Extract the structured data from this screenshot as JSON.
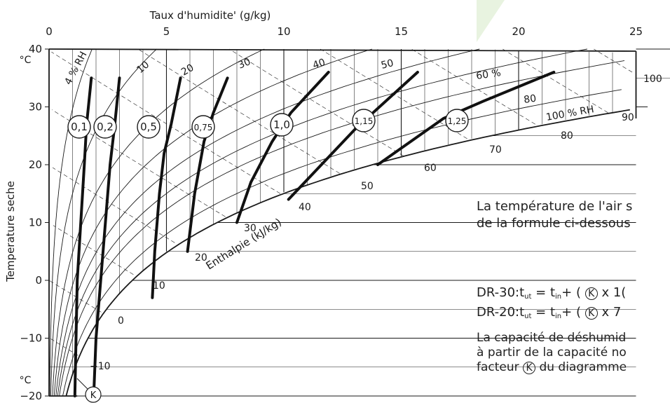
{
  "chart_data": {
    "type": "psychrometric",
    "xlabel": "Taux d'humidite' (g/kg)",
    "ylabel": "Temperature seche",
    "xlim": [
      0,
      25
    ],
    "ylim": [
      -20,
      40
    ],
    "x_ticks": [
      "0",
      "5",
      "10",
      "15",
      "20",
      "25"
    ],
    "y_ticks": [
      "40",
      "30",
      "20",
      "10",
      "0",
      "-10",
      "-20"
    ],
    "y_unit": "°C",
    "rh_labels": [
      "4 % RH",
      "10",
      "20",
      "30",
      "40",
      "50",
      "60 %",
      "80",
      "100 % RH"
    ],
    "enthalpy_label": "Enthalpie (kJ/kg)",
    "enthalpy_labels": [
      "-10",
      "0",
      "10",
      "20",
      "30",
      "40",
      "50",
      "60",
      "70",
      "80",
      "90",
      "100"
    ],
    "k_factors": [
      "0,1",
      "0,2",
      "0,5",
      "0,75",
      "1,0",
      "1,15",
      "1,25"
    ],
    "k_symbol": "K",
    "k_curves": [
      {
        "k": "0,1",
        "points": [
          [
            1.1,
            -20
          ],
          [
            1.2,
            0
          ],
          [
            1.5,
            20
          ],
          [
            1.6,
            27
          ],
          [
            1.8,
            35
          ]
        ]
      },
      {
        "k": "0,2",
        "points": [
          [
            1.9,
            -20
          ],
          [
            2.0,
            -10
          ],
          [
            2.2,
            0
          ],
          [
            2.6,
            20
          ],
          [
            2.8,
            27
          ],
          [
            3.0,
            35
          ]
        ]
      },
      {
        "k": "0,5",
        "points": [
          [
            4.4,
            -3
          ],
          [
            4.5,
            5
          ],
          [
            4.7,
            15
          ],
          [
            4.9,
            22
          ],
          [
            5.2,
            27
          ],
          [
            5.6,
            35
          ]
        ]
      },
      {
        "k": "0,75",
        "points": [
          [
            5.9,
            5
          ],
          [
            6.2,
            15
          ],
          [
            6.6,
            24
          ],
          [
            7.0,
            29
          ],
          [
            7.6,
            35
          ]
        ]
      },
      {
        "k": "1,0",
        "points": [
          [
            8.0,
            10
          ],
          [
            8.6,
            17
          ],
          [
            9.5,
            24
          ],
          [
            10.3,
            29
          ],
          [
            11.9,
            36
          ]
        ]
      },
      {
        "k": "1,15",
        "points": [
          [
            10.2,
            14
          ],
          [
            11.6,
            20
          ],
          [
            13.0,
            26
          ],
          [
            13.8,
            29
          ],
          [
            15.7,
            36
          ]
        ]
      },
      {
        "k": "1,25",
        "points": [
          [
            14.0,
            20
          ],
          [
            15.4,
            24
          ],
          [
            16.8,
            28
          ],
          [
            18.5,
            31
          ],
          [
            21.5,
            36
          ]
        ]
      }
    ],
    "grid": true
  },
  "annotations": {
    "line1": "La température de l'air s",
    "line2": "de la formule ci-dessous",
    "formula1_prefix": "DR-30:t",
    "formula1_mid": " = t",
    "formula1_suffix": "+ ( ",
    "formula1_tail": " x 1(",
    "formula2_prefix": "DR-20:t",
    "formula2_mid": " = t",
    "formula2_suffix": "+ ( ",
    "formula2_tail": " x 7",
    "sub_ut": "ut",
    "sub_in": "in",
    "cap1": "La capacité de déshumid",
    "cap2": "à partir de la capacité no",
    "cap3_prefix": "facteur ",
    "cap3_suffix": " du diagramme"
  }
}
